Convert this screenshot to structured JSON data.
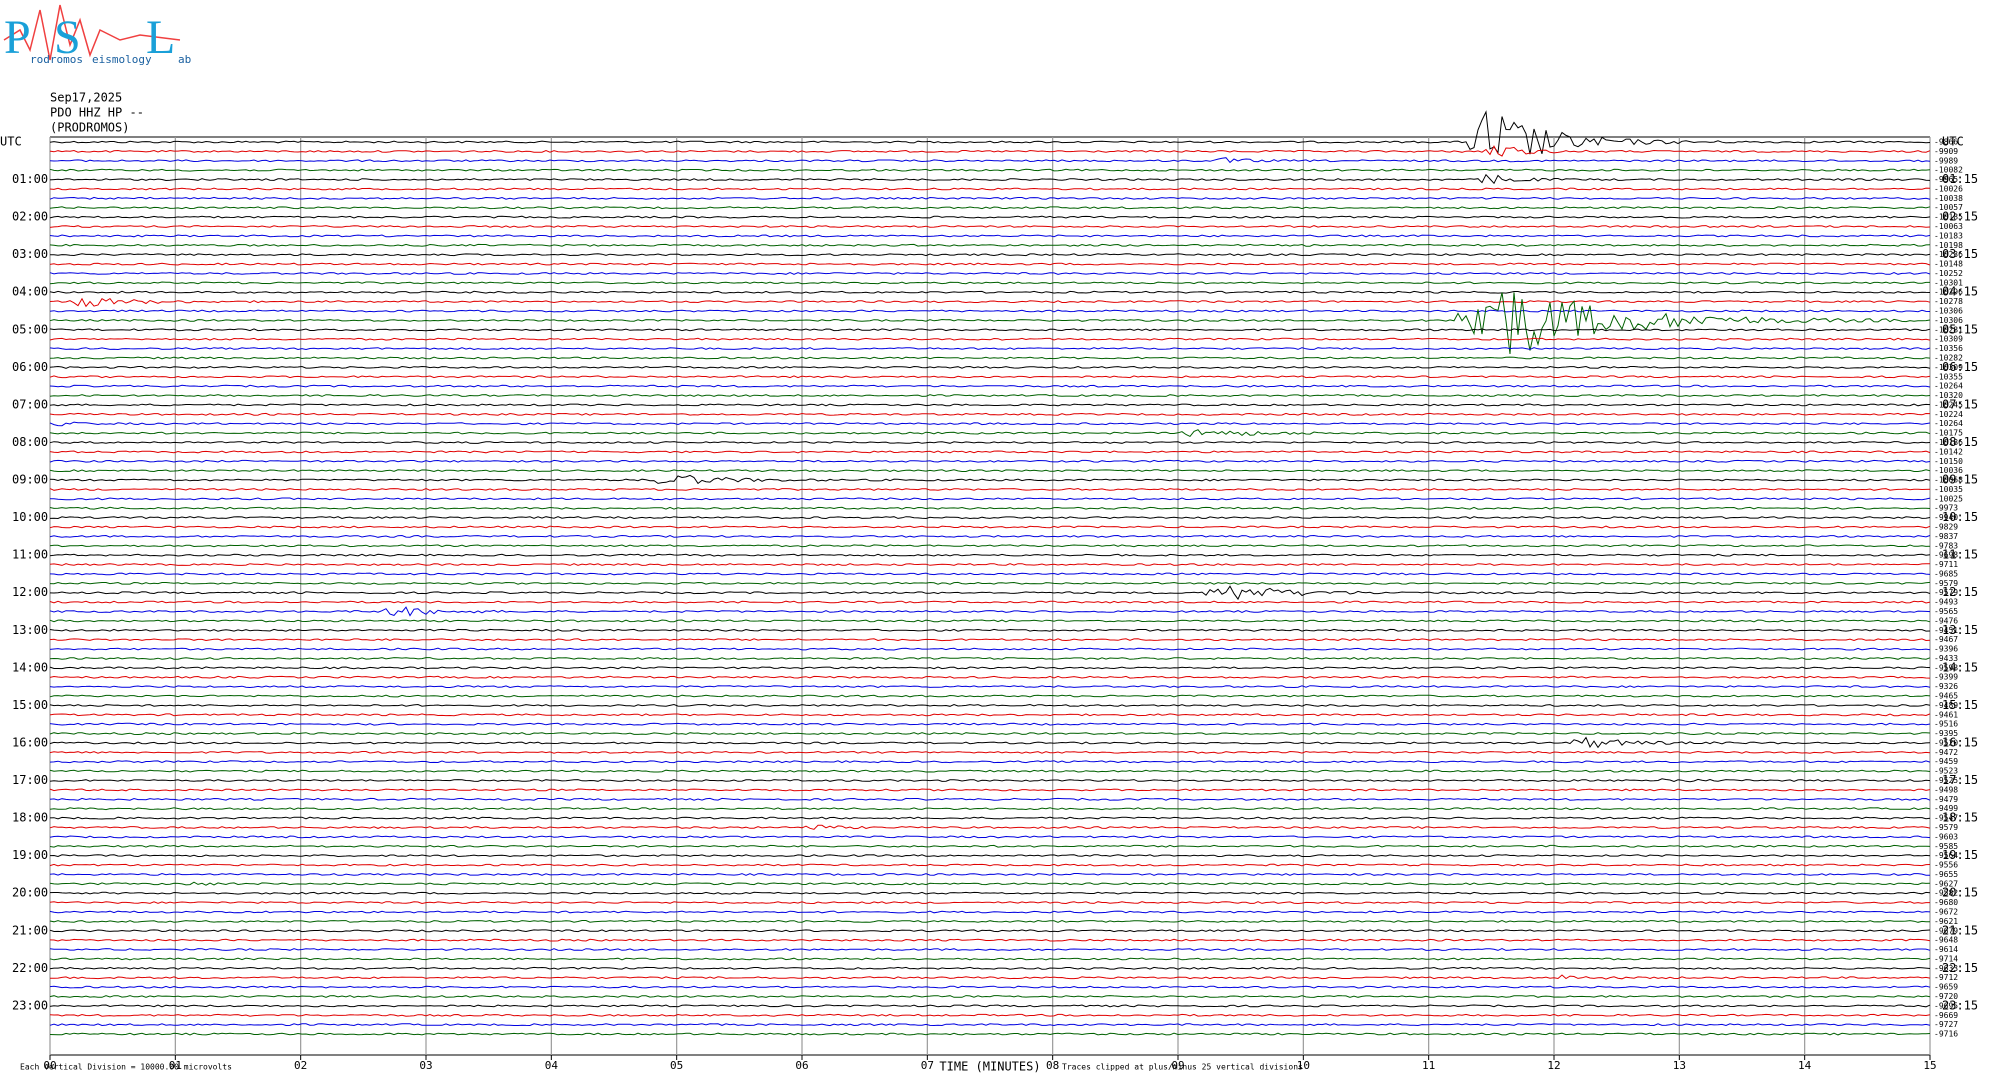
{
  "chart_data": {
    "type": "helicorder",
    "logo": {
      "letters": [
        "P",
        "S",
        "L"
      ],
      "words": [
        "rodromos",
        "eismology",
        "ab"
      ]
    },
    "date": "Sep17,2025",
    "station": "PDO HHZ HP --",
    "location": "(PRODROMOS)",
    "left_labels": [
      "UTC",
      "01:00",
      "02:00",
      "03:00",
      "04:00",
      "05:00",
      "06:00",
      "07:00",
      "08:00",
      "09:00",
      "10:00",
      "11:00",
      "12:00",
      "13:00",
      "14:00",
      "15:00",
      "16:00",
      "17:00",
      "18:00",
      "19:00",
      "20:00",
      "21:00",
      "22:00",
      "23:00"
    ],
    "right_labels": [
      "UTC",
      "01:15",
      "02:15",
      "03:15",
      "04:15",
      "05:15",
      "06:15",
      "07:15",
      "08:15",
      "09:15",
      "10:15",
      "11:15",
      "12:15",
      "13:15",
      "14:15",
      "15:15",
      "16:15",
      "17:15",
      "18:15",
      "19:15",
      "20:15",
      "21:15",
      "22:15",
      "23:15"
    ],
    "row_values": [
      -9866,
      -9909,
      -9989,
      -10082,
      -9965,
      -10026,
      -10038,
      -10057,
      -10185,
      -10063,
      -10183,
      -10198,
      -10236,
      -10148,
      -10252,
      -10301,
      -10296,
      -10278,
      -10306,
      -10306,
      -10281,
      -10309,
      -10356,
      -10282,
      -10309,
      -10355,
      -10264,
      -10320,
      -10245,
      -10224,
      -10264,
      -10175,
      -10186,
      -10142,
      -10150,
      -10036,
      -10068,
      -10035,
      -10025,
      -9973,
      -9940,
      -9829,
      -9837,
      -9783,
      -9698,
      -9711,
      -9685,
      -9579,
      -9579,
      -9493,
      -9565,
      -9476,
      -9451,
      -9467,
      -9396,
      -9433,
      -9598,
      -9399,
      -9326,
      -9465,
      -9489,
      -9461,
      -9516,
      -9395,
      -9520,
      -9472,
      -9459,
      -9523,
      -9525,
      -9498,
      -9479,
      -9499,
      -9547,
      -9579,
      -9603,
      -9585,
      -9564,
      -9556,
      -9655,
      -9627,
      -9582,
      -9680,
      -9672,
      -9621,
      -9679,
      -9648,
      -9614,
      -9714,
      -9633,
      -9712,
      -9659,
      -9720,
      -9695,
      -9669,
      -9727,
      -9716
    ],
    "trace_colors": [
      "#000000",
      "#e00000",
      "#0000e0",
      "#006000"
    ],
    "xlim": [
      0,
      15
    ],
    "xticks": [
      {
        "value": 0,
        "label": "00"
      },
      {
        "value": 1,
        "label": "01"
      },
      {
        "value": 2,
        "label": "02"
      },
      {
        "value": 3,
        "label": "03"
      },
      {
        "value": 4,
        "label": "04"
      },
      {
        "value": 5,
        "label": "05"
      },
      {
        "value": 6,
        "label": "06"
      },
      {
        "value": 7,
        "label": "07"
      },
      {
        "value": 8,
        "label": "08"
      },
      {
        "value": 9,
        "label": "09"
      },
      {
        "value": 10,
        "label": "10"
      },
      {
        "value": 11,
        "label": "11"
      },
      {
        "value": 12,
        "label": "12"
      },
      {
        "value": 13,
        "label": "13"
      },
      {
        "value": 14,
        "label": "14"
      },
      {
        "value": 15,
        "label": "15"
      }
    ],
    "xlabel": "TIME (MINUTES)",
    "scale_note": "Each Vertical Division = 10000.00 microvolts",
    "clip_note": "Traces clipped at plus/minus 25 vertical divisions"
  }
}
